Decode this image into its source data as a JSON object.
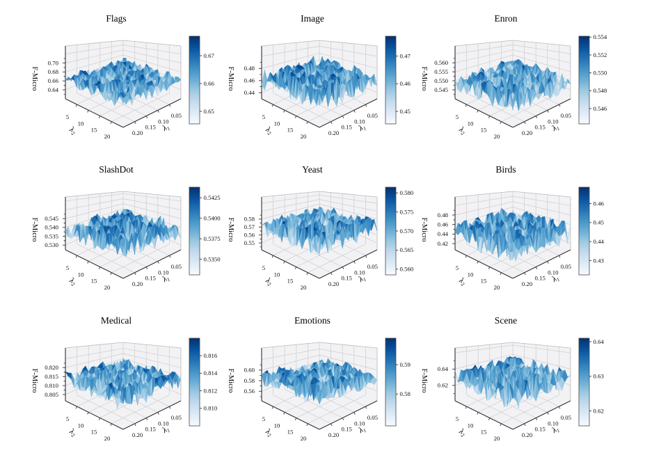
{
  "figure": {
    "background": "#ffffff",
    "grid": {
      "rows": 3,
      "cols": 3
    },
    "shared": {
      "zlabel": "F-Micro",
      "xlabel": {
        "base": "λ",
        "sub": "1"
      },
      "ylabel": {
        "base": "λ",
        "sub": "2"
      },
      "x_ticks": [
        "0.20",
        "0.15",
        "0.10",
        "0.05"
      ],
      "y_ticks": [
        "5",
        "10",
        "15",
        "20"
      ],
      "colormap": "Blues",
      "colormap_stops": [
        "#f7fbff",
        "#deebf7",
        "#c6dbef",
        "#9ecae1",
        "#6baed6",
        "#4292c6",
        "#2171b5",
        "#08519c",
        "#08306b"
      ],
      "pane_color": "#f2f2f4",
      "grid_color": "#cdcdd0",
      "spine_color": "#2f2f33"
    }
  },
  "chart_data": [
    {
      "type": "surface3d",
      "title": "Flags",
      "zlabel": "F-Micro",
      "xlabel": "λ1",
      "ylabel": "λ2",
      "x_ticks": [
        "0.20",
        "0.15",
        "0.10",
        "0.05"
      ],
      "y_ticks": [
        "5",
        "10",
        "15",
        "20"
      ],
      "z_ticks": [
        "0.70",
        "0.68",
        "0.66",
        "0.64"
      ],
      "z_axis_range": [
        0.62,
        0.738
      ],
      "colorbar_ticks": [
        "0.67",
        "0.66",
        "0.65"
      ],
      "colorbar_range": [
        0.6455,
        0.677
      ],
      "surface": {
        "grid": [
          20,
          20
        ],
        "x_range": [
          0.01,
          0.2
        ],
        "y_range": [
          1,
          20
        ],
        "z_min": 0.6455,
        "z_max": 0.677,
        "description": "noisy random-looking F-Micro surface over (λ1,λ2) grid",
        "seed": 3
      }
    },
    {
      "type": "surface3d",
      "title": "Image",
      "zlabel": "F-Micro",
      "xlabel": "λ1",
      "ylabel": "λ2",
      "x_ticks": [
        "0.20",
        "0.15",
        "0.10",
        "0.05"
      ],
      "y_ticks": [
        "5",
        "10",
        "15",
        "20"
      ],
      "z_ticks": [
        "0.48",
        "0.46",
        "0.44"
      ],
      "z_axis_range": [
        0.43,
        0.517
      ],
      "colorbar_ticks": [
        "0.47",
        "0.46",
        "0.45"
      ],
      "colorbar_range": [
        0.4455,
        0.4772
      ],
      "surface": {
        "grid": [
          20,
          20
        ],
        "x_range": [
          0.01,
          0.2
        ],
        "y_range": [
          1,
          20
        ],
        "z_min": 0.4455,
        "z_max": 0.4772,
        "description": "noisy random-looking F-Micro surface over (λ1,λ2) grid",
        "seed": 7
      }
    },
    {
      "type": "surface3d",
      "title": "Enron",
      "zlabel": "F-Micro",
      "xlabel": "λ1",
      "ylabel": "λ2",
      "x_ticks": [
        "0.20",
        "0.15",
        "0.10",
        "0.05"
      ],
      "y_ticks": [
        "5",
        "10",
        "15",
        "20"
      ],
      "z_ticks": [
        "0.560",
        "0.555",
        "0.550",
        "0.545"
      ],
      "z_axis_range": [
        0.54,
        0.5694
      ],
      "colorbar_ticks": [
        "0.554",
        "0.552",
        "0.550",
        "0.548",
        "0.546"
      ],
      "colorbar_range": [
        0.5443,
        0.5541
      ],
      "surface": {
        "grid": [
          20,
          20
        ],
        "x_range": [
          0.01,
          0.2
        ],
        "y_range": [
          1,
          20
        ],
        "z_min": 0.5443,
        "z_max": 0.5541,
        "description": "noisy random-looking F-Micro surface over (λ1,λ2) grid",
        "seed": 11
      }
    },
    {
      "type": "surface3d",
      "title": "SlashDot",
      "zlabel": "F-Micro",
      "xlabel": "λ1",
      "ylabel": "λ2",
      "x_ticks": [
        "0.20",
        "0.15",
        "0.10",
        "0.05"
      ],
      "y_ticks": [
        "5",
        "10",
        "15",
        "20"
      ],
      "z_ticks": [
        "0.545",
        "0.540",
        "0.535",
        "0.530"
      ],
      "z_axis_range": [
        0.5273,
        0.5573
      ],
      "colorbar_ticks": [
        "0.5425",
        "0.5400",
        "0.5375",
        "0.5350"
      ],
      "colorbar_range": [
        0.5331,
        0.5438
      ],
      "surface": {
        "grid": [
          20,
          20
        ],
        "x_range": [
          0.01,
          0.2
        ],
        "y_range": [
          1,
          20
        ],
        "z_min": 0.5331,
        "z_max": 0.5438,
        "description": "noisy random-looking F-Micro surface over (λ1,λ2) grid",
        "seed": 13
      }
    },
    {
      "type": "surface3d",
      "title": "Yeast",
      "zlabel": "F-Micro",
      "xlabel": "λ1",
      "ylabel": "λ2",
      "x_ticks": [
        "0.20",
        "0.15",
        "0.10",
        "0.05"
      ],
      "y_ticks": [
        "5",
        "10",
        "15",
        "20"
      ],
      "z_ticks": [
        "0.58",
        "0.57",
        "0.56",
        "0.55"
      ],
      "z_axis_range": [
        0.5413,
        0.608
      ],
      "colorbar_ticks": [
        "0.580",
        "0.575",
        "0.570",
        "0.565",
        "0.560"
      ],
      "colorbar_range": [
        0.5585,
        0.5815
      ],
      "surface": {
        "grid": [
          20,
          20
        ],
        "x_range": [
          0.01,
          0.2
        ],
        "y_range": [
          1,
          20
        ],
        "z_min": 0.5585,
        "z_max": 0.5815,
        "description": "noisy random-looking F-Micro surface over (λ1,λ2) grid",
        "seed": 17
      }
    },
    {
      "type": "surface3d",
      "title": "Birds",
      "zlabel": "F-Micro",
      "xlabel": "λ1",
      "ylabel": "λ2",
      "x_ticks": [
        "0.20",
        "0.15",
        "0.10",
        "0.05"
      ],
      "y_ticks": [
        "5",
        "10",
        "15",
        "20"
      ],
      "z_ticks": [
        "0.48",
        "0.46",
        "0.44",
        "0.42"
      ],
      "z_axis_range": [
        0.407,
        0.518
      ],
      "colorbar_ticks": [
        "0.46",
        "0.45",
        "0.44",
        "0.43"
      ],
      "colorbar_range": [
        0.4225,
        0.4686
      ],
      "surface": {
        "grid": [
          20,
          20
        ],
        "x_range": [
          0.01,
          0.2
        ],
        "y_range": [
          1,
          20
        ],
        "z_min": 0.4225,
        "z_max": 0.4686,
        "description": "noisy random-looking F-Micro surface over (λ1,λ2) grid",
        "seed": 19
      }
    },
    {
      "type": "surface3d",
      "title": "Medical",
      "zlabel": "F-Micro",
      "xlabel": "λ1",
      "ylabel": "λ2",
      "x_ticks": [
        "0.20",
        "0.15",
        "0.10",
        "0.05"
      ],
      "y_ticks": [
        "5",
        "10",
        "15",
        "20"
      ],
      "z_ticks": [
        "0.820",
        "0.815",
        "0.810",
        "0.805"
      ],
      "z_axis_range": [
        0.8015,
        0.831
      ],
      "colorbar_ticks": [
        "0.816",
        "0.814",
        "0.812",
        "0.810"
      ],
      "colorbar_range": [
        0.808,
        0.818
      ],
      "surface": {
        "grid": [
          20,
          20
        ],
        "x_range": [
          0.01,
          0.2
        ],
        "y_range": [
          1,
          20
        ],
        "z_min": 0.808,
        "z_max": 0.818,
        "description": "noisy random-looking F-Micro surface over (λ1,λ2) grid",
        "seed": 23
      }
    },
    {
      "type": "surface3d",
      "title": "Emotions",
      "zlabel": "F-Micro",
      "xlabel": "λ1",
      "ylabel": "λ2",
      "x_ticks": [
        "0.20",
        "0.15",
        "0.10",
        "0.05"
      ],
      "y_ticks": [
        "5",
        "10",
        "15",
        "20"
      ],
      "z_ticks": [
        "0.60",
        "0.58",
        "0.56"
      ],
      "z_axis_range": [
        0.542,
        0.642
      ],
      "colorbar_ticks": [
        "0.59",
        "0.58"
      ],
      "colorbar_range": [
        0.5692,
        0.599
      ],
      "surface": {
        "grid": [
          20,
          20
        ],
        "x_range": [
          0.01,
          0.2
        ],
        "y_range": [
          1,
          20
        ],
        "z_min": 0.5692,
        "z_max": 0.599,
        "description": "noisy random-looking F-Micro surface over (λ1,λ2) grid",
        "seed": 29
      }
    },
    {
      "type": "surface3d",
      "title": "Scene",
      "zlabel": "F-Micro",
      "xlabel": "λ1",
      "ylabel": "λ2",
      "x_ticks": [
        "0.20",
        "0.15",
        "0.10",
        "0.05"
      ],
      "y_ticks": [
        "5",
        "10",
        "15",
        "20"
      ],
      "z_ticks": [
        "0.64",
        "0.62"
      ],
      "z_axis_range": [
        0.601,
        0.666
      ],
      "colorbar_ticks": [
        "0.64",
        "0.63",
        "0.62"
      ],
      "colorbar_range": [
        0.6157,
        0.641
      ],
      "surface": {
        "grid": [
          20,
          20
        ],
        "x_range": [
          0.01,
          0.2
        ],
        "y_range": [
          1,
          20
        ],
        "z_min": 0.6157,
        "z_max": 0.641,
        "description": "noisy random-looking F-Micro surface over (λ1,λ2) grid",
        "seed": 31
      }
    }
  ]
}
